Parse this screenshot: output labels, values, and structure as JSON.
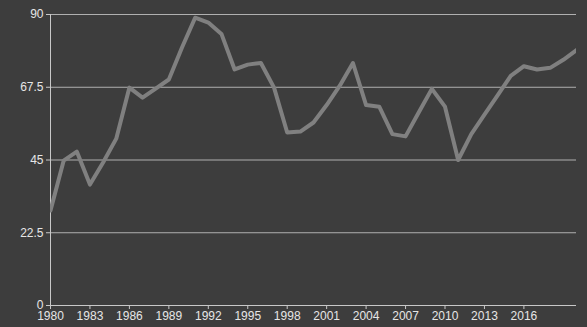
{
  "chart_data": {
    "type": "line",
    "x": [
      1980,
      1981,
      1982,
      1983,
      1984,
      1985,
      1986,
      1987,
      1988,
      1989,
      1990,
      1991,
      1992,
      1993,
      1994,
      1995,
      1996,
      1997,
      1998,
      1999,
      2000,
      2001,
      2002,
      2003,
      2004,
      2005,
      2006,
      2007,
      2008,
      2009,
      2010,
      2011,
      2012,
      2013,
      2014,
      2015,
      2016,
      2017,
      2018,
      2019,
      2020
    ],
    "values": [
      29.4,
      44.8,
      47.6,
      37.4,
      44.2,
      51.6,
      67.4,
      64.3,
      67.1,
      69.9,
      79.8,
      89,
      87.5,
      84,
      73,
      74.5,
      75,
      67.4,
      53.5,
      53.8,
      56.6,
      62,
      68,
      75,
      62,
      61.5,
      53,
      52.3,
      59.7,
      67,
      61.5,
      45,
      53,
      59,
      65,
      71,
      74,
      73,
      73.5,
      76,
      79
    ],
    "color": "#808080",
    "xlim": [
      1980,
      2020
    ],
    "xticks": [
      1980,
      1983,
      1986,
      1989,
      1992,
      1995,
      1998,
      2001,
      2004,
      2007,
      2010,
      2013,
      2016
    ],
    "ylim": [
      0,
      90
    ],
    "yticks": [
      0,
      22.5,
      45,
      67.5,
      90
    ],
    "grid": true
  }
}
